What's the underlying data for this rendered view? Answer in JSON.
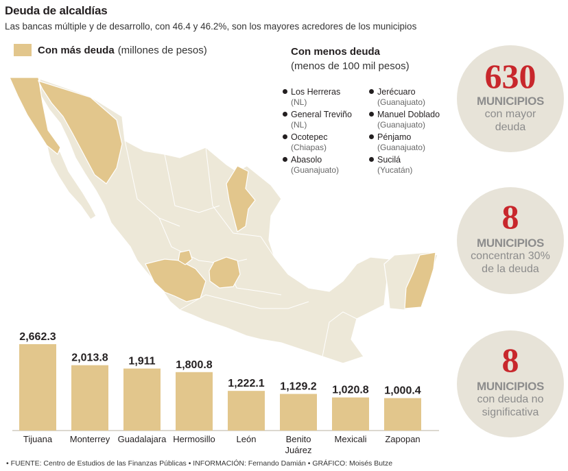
{
  "header": {
    "title": "Deuda de alcaldías",
    "subtitle": "Las bancas múltiple y de desarrollo, con 46.4 y 46.2%, son los mayores acredores de los municipios"
  },
  "legend": {
    "more_debt_bold": "Con más deuda",
    "more_debt_unit": "(millones de pesos)",
    "swatch_color": "#e2c68c"
  },
  "less_debt": {
    "title": "Con menos deuda",
    "subtitle": "(menos de 100 mil pesos)",
    "items": [
      {
        "name": "Los Herreras",
        "state": "(NL)"
      },
      {
        "name": "Jerécuaro",
        "state": "(Guanajuato)"
      },
      {
        "name": "General Treviño",
        "state": "(NL)"
      },
      {
        "name": "Manuel Doblado",
        "state": "(Guanajuato)"
      },
      {
        "name": "Ocotepec",
        "state": "(Chiapas)"
      },
      {
        "name": "Pénjamo",
        "state": "(Guanajuato)"
      },
      {
        "name": "Abasolo",
        "state": "(Guanajuato)"
      },
      {
        "name": "Sucilá",
        "state": "(Yucatán)"
      }
    ]
  },
  "stats": [
    {
      "number": "630",
      "word": "MUNICIPIOS",
      "desc": [
        "con mayor",
        "deuda"
      ]
    },
    {
      "number": "8",
      "word": "MUNICIPIOS",
      "desc": [
        "concentran 30%",
        "de la deuda"
      ]
    },
    {
      "number": "8",
      "word": "MUNICIPIOS",
      "desc": [
        "con deuda no",
        "significativa"
      ]
    }
  ],
  "colors": {
    "highlight": "#e2c68c",
    "land": "#ede8d8",
    "border": "#ffffff",
    "accent_red": "#c8272c",
    "circle": "#e7e3d8"
  },
  "chart_data": {
    "type": "bar",
    "title": "Con más deuda",
    "ylabel": "(millones de pesos)",
    "categories": [
      "Tijuana",
      "Monterrey",
      "Guadalajara",
      "Hermosillo",
      "León",
      "Benito Juárez",
      "Mexicali",
      "Zapopan"
    ],
    "category_lines": [
      [
        "Tijuana"
      ],
      [
        "Monterrey"
      ],
      [
        "Guadalajara"
      ],
      [
        "Hermosillo"
      ],
      [
        "León"
      ],
      [
        "Benito",
        "Juárez"
      ],
      [
        "Mexicali"
      ],
      [
        "Zapopan"
      ]
    ],
    "values": [
      2662.3,
      2013.8,
      1911,
      1800.8,
      1222.1,
      1129.2,
      1020.8,
      1000.4
    ],
    "value_labels": [
      "2,662.3",
      "2,013.8",
      "1,911",
      "1,800.8",
      "1,222.1",
      "1,129.2",
      "1,020.8",
      "1,000.4"
    ],
    "ylim": [
      0,
      2662.3
    ],
    "grid": false,
    "bar_color": "#e2c68c"
  },
  "source": "• FUENTE: Centro de Estudios de las Finanzas Públicas • INFORMACIÓN: Fernando Damián • GRÁFICO: Moisés Butze"
}
